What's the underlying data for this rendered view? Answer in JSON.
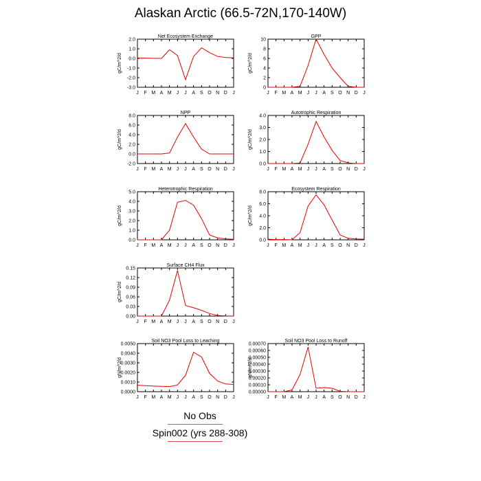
{
  "title": "Alaskan Arctic (66.5-72N,170-140W)",
  "month_labels": [
    "J",
    "F",
    "M",
    "A",
    "M",
    "J",
    "J",
    "A",
    "S",
    "O",
    "N",
    "D",
    "J"
  ],
  "line_color": "#e00000",
  "chart_data": [
    {
      "type": "line",
      "title": "Net Ecosystem Exchange",
      "ylabel": "gC/m^2/d",
      "ylim": [
        -3.0,
        2.0
      ],
      "yticks": [
        "2.0",
        "1.0",
        "0.0",
        "-1.0",
        "-2.0",
        "-3.0"
      ],
      "values": [
        0.05,
        0.03,
        0.01,
        0.0,
        0.9,
        0.3,
        -2.2,
        0.2,
        1.1,
        0.6,
        0.2,
        0.1,
        0.05
      ]
    },
    {
      "type": "line",
      "title": "GPP",
      "ylabel": "gC/m^2/d",
      "ylim": [
        0,
        10
      ],
      "yticks": [
        "10",
        "8",
        "6",
        "4",
        "2",
        "0"
      ],
      "values": [
        0,
        0,
        0,
        0,
        0.2,
        4.5,
        10,
        6.8,
        4.0,
        2.0,
        0.2,
        0,
        0
      ]
    },
    {
      "type": "line",
      "title": "NPP",
      "ylabel": "gC/m^2/d",
      "ylim": [
        -2.0,
        8.0
      ],
      "yticks": [
        "8.0",
        "6.0",
        "4.0",
        "2.0",
        "0.0",
        "-2.0"
      ],
      "values": [
        0,
        0,
        0,
        0,
        0.2,
        3.5,
        6.3,
        3.5,
        1.0,
        0,
        0,
        0,
        0
      ]
    },
    {
      "type": "line",
      "title": "Autotrophic Respiration",
      "ylabel": "gC/m^2/d",
      "ylim": [
        0,
        4.0
      ],
      "yticks": [
        "4.0",
        "3.0",
        "2.0",
        "1.0",
        "0.0"
      ],
      "values": [
        0,
        0,
        0,
        0,
        0.05,
        1.6,
        3.5,
        2.2,
        1.1,
        0.25,
        0.05,
        0,
        0
      ]
    },
    {
      "type": "line",
      "title": "Heterotrophic Respiration",
      "ylabel": "gC/m^2/d",
      "ylim": [
        0,
        5.0
      ],
      "yticks": [
        "5.0",
        "4.0",
        "3.0",
        "2.0",
        "1.0",
        "0.0"
      ],
      "values": [
        0,
        0,
        0,
        0,
        1.0,
        3.9,
        4.1,
        3.6,
        2.2,
        0.5,
        0.2,
        0.1,
        0.05
      ]
    },
    {
      "type": "line",
      "title": "Ecosystem Respiration",
      "ylabel": "gC/m^2/d",
      "ylim": [
        0,
        8.0
      ],
      "yticks": [
        "8.0",
        "6.0",
        "4.0",
        "2.0",
        "0.0"
      ],
      "values": [
        0.1,
        0.05,
        0.05,
        0,
        1.2,
        5.6,
        7.5,
        5.8,
        3.3,
        0.8,
        0.25,
        0.15,
        0.1
      ]
    },
    {
      "type": "line",
      "title": "Surface CH4 Flux",
      "ylabel": "gC/m^2/d",
      "ylim": [
        0,
        0.15
      ],
      "yticks": [
        "0.15",
        "0.12",
        "0.09",
        "0.06",
        "0.03",
        "0.00"
      ],
      "values": [
        0,
        0,
        0,
        0,
        0.05,
        0.142,
        0.033,
        0.026,
        0.018,
        0.008,
        0.002,
        0.0005,
        0
      ]
    },
    {
      "type": "line",
      "title": "Soil NO3 Pool Loss to Leaching",
      "ylabel": "gN/m^2/d",
      "ylim": [
        0,
        0.005
      ],
      "yticks": [
        "0.0050",
        "0.0040",
        "0.0030",
        "0.0020",
        "0.0010",
        "0.0000"
      ],
      "values": [
        0.00068,
        0.00062,
        0.00058,
        0.00055,
        0.00053,
        0.0007,
        0.0017,
        0.0041,
        0.0036,
        0.0019,
        0.0011,
        0.0008,
        0.00075
      ]
    },
    {
      "type": "line",
      "title": "Soil NO3 Pool Loss to Runoff",
      "ylabel": "gN/m^2/d",
      "ylim": [
        0,
        0.0007
      ],
      "yticks": [
        "0.00070",
        "0.00060",
        "0.00050",
        "0.00040",
        "0.00030",
        "0.00020",
        "0.00010",
        "0.00000"
      ],
      "values": [
        0,
        0,
        0,
        2.5e-05,
        0.00025,
        0.00065,
        5e-05,
        6e-05,
        5e-05,
        5e-06,
        0,
        0,
        0
      ]
    }
  ],
  "legend": {
    "obs_label": "No Obs",
    "model_label": "Spin002 (yrs 288-308)",
    "obs_color": "#e05050",
    "model_color": "#e05050"
  }
}
